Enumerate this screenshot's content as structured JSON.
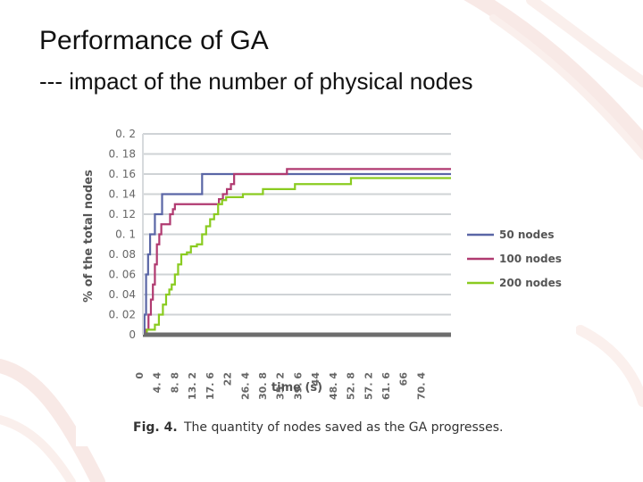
{
  "slide": {
    "title": "Performance of GA",
    "subtitle": "--- impact of the number of physical nodes"
  },
  "caption": {
    "number": "Fig. 4.",
    "text": "The quantity of nodes saved as the GA progresses."
  },
  "colors": {
    "accent_50": "#5a66a6",
    "accent_100": "#b03a70",
    "accent_200": "#8acb20",
    "grid": "#cfd3d6",
    "axis": "#6d6d6d"
  },
  "chart_data": {
    "type": "line",
    "title": "",
    "xlabel": "time (s)",
    "ylabel": "% of the total nodes",
    "xlim": [
      0,
      77
    ],
    "ylim": [
      0,
      0.2
    ],
    "y_ticks": [
      0,
      0.02,
      0.04,
      0.06,
      0.08,
      0.1,
      0.12,
      0.14,
      0.16,
      0.18,
      0.2
    ],
    "y_tick_labels": [
      "0",
      "0. 02",
      "0. 04",
      "0. 06",
      "0. 08",
      "0. 1",
      "0. 12",
      "0. 14",
      "0. 16",
      "0. 18",
      "0. 2"
    ],
    "x_ticks": [
      0,
      4.4,
      8.8,
      13.2,
      17.6,
      22,
      26.4,
      30.8,
      35.2,
      39.6,
      44,
      48.4,
      52.8,
      57.2,
      61.6,
      66,
      70.4
    ],
    "x_tick_labels": [
      "0",
      "4. 4",
      "8. 8",
      "13. 2",
      "17. 6",
      "22",
      "26. 4",
      "30. 8",
      "35. 2",
      "39. 6",
      "44",
      "48. 4",
      "52. 8",
      "57. 2",
      "61. 6",
      "66",
      "70. 4"
    ],
    "legend_position": "right",
    "grid": true,
    "series": [
      {
        "name": "50 nodes",
        "color": "#5a66a6",
        "x": [
          0,
          0.4,
          0.8,
          1.3,
          1.8,
          2.4,
          3.0,
          3.8,
          4.8,
          9.2,
          10.4,
          14.8,
          16.5,
          22.8,
          77
        ],
        "y": [
          0,
          0.02,
          0.06,
          0.08,
          0.1,
          0.1,
          0.12,
          0.12,
          0.14,
          0.14,
          0.14,
          0.16,
          0.16,
          0.16,
          0.16
        ]
      },
      {
        "name": "100 nodes",
        "color": "#b03a70",
        "x": [
          0,
          0.8,
          1.4,
          2.0,
          2.5,
          3.0,
          3.5,
          4.1,
          4.6,
          5.2,
          6.8,
          7.5,
          8.0,
          14.8,
          16.5,
          19.0,
          20.0,
          21.0,
          22.0,
          22.8,
          24.0,
          28.5,
          36.0,
          77
        ],
        "y": [
          0,
          0.005,
          0.02,
          0.035,
          0.05,
          0.07,
          0.09,
          0.1,
          0.11,
          0.11,
          0.12,
          0.125,
          0.13,
          0.13,
          0.13,
          0.135,
          0.14,
          0.145,
          0.15,
          0.16,
          0.16,
          0.16,
          0.165,
          0.165
        ]
      },
      {
        "name": "200 nodes",
        "color": "#8acb20",
        "x": [
          0,
          1.0,
          3.0,
          4.0,
          5.0,
          5.8,
          6.6,
          7.2,
          8.0,
          8.8,
          9.6,
          10.2,
          11.0,
          12.0,
          13.5,
          14.8,
          15.8,
          16.8,
          17.8,
          18.8,
          19.8,
          20.8,
          25.0,
          30.0,
          38.0,
          52.0,
          77
        ],
        "y": [
          0,
          0.005,
          0.01,
          0.02,
          0.03,
          0.04,
          0.045,
          0.05,
          0.06,
          0.07,
          0.08,
          0.08,
          0.082,
          0.088,
          0.09,
          0.1,
          0.108,
          0.115,
          0.12,
          0.13,
          0.134,
          0.137,
          0.14,
          0.145,
          0.15,
          0.156,
          0.156
        ]
      }
    ]
  }
}
